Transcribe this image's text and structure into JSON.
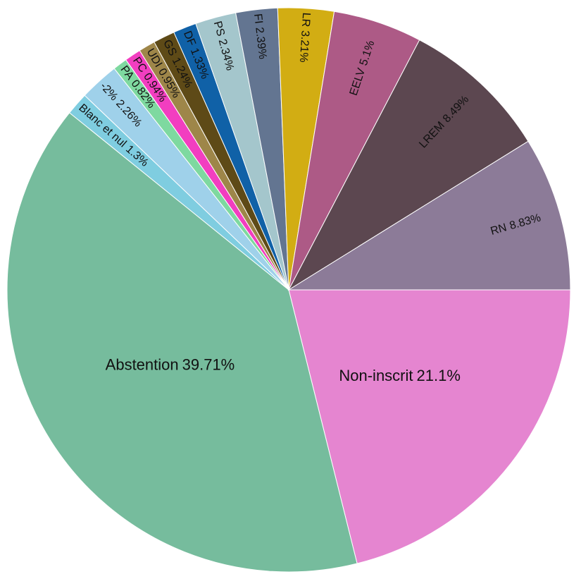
{
  "chart_data": {
    "type": "pie",
    "categories": [
      "Non-inscrit",
      "Abstention",
      "Blanc et nul",
      "-2%",
      "PA",
      "PC",
      "UDI",
      "GS",
      "DF",
      "PS",
      "FI",
      "LR",
      "EELV",
      "LREM",
      "RN"
    ],
    "values": [
      21.1,
      39.71,
      1.3,
      2.26,
      0.82,
      0.94,
      0.95,
      1.24,
      1.33,
      2.34,
      2.39,
      3.21,
      5.1,
      8.49,
      8.83
    ],
    "value_labels": [
      "21.1%",
      "39.71%",
      "1.3%",
      "2.26%",
      "0.82%",
      "0.94%",
      "0.95%",
      "1.24%",
      "1.33%",
      "2.34%",
      "2.39%",
      "3.21%",
      "5.1%",
      "8.49%",
      "8.83%"
    ],
    "colors": [
      "#e585d0",
      "#76bc9d",
      "#7fcde0",
      "#9fd1ea",
      "#7ed9a0",
      "#f23ec0",
      "#9e8649",
      "#5e4a17",
      "#1061a7",
      "#a4c6cc",
      "#637591",
      "#d2ad13",
      "#ad5a86",
      "#5c4750",
      "#8c7b98"
    ]
  }
}
